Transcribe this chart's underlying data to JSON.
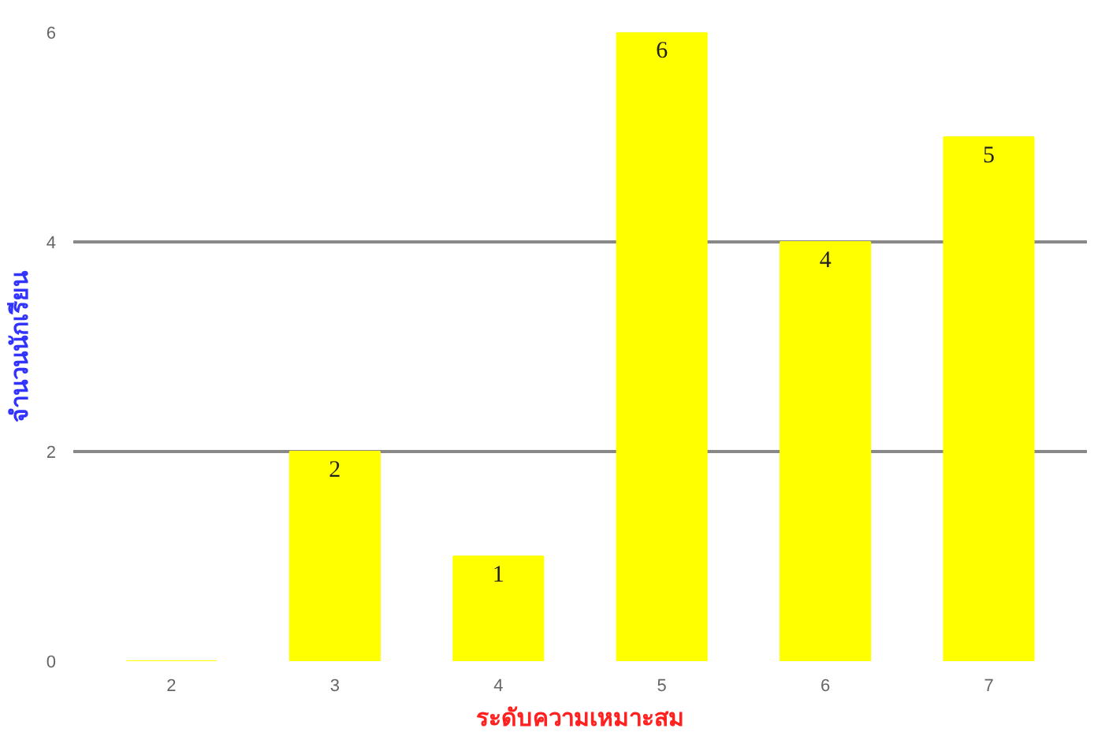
{
  "chart_data": {
    "type": "bar",
    "categories": [
      "2",
      "3",
      "4",
      "5",
      "6",
      "7"
    ],
    "values": [
      0,
      2,
      1,
      6,
      4,
      5
    ],
    "color": "#ffff00",
    "ylim": [
      0,
      6
    ],
    "yticks": [
      0,
      2,
      4,
      6
    ],
    "grid": "y",
    "value_labels": [
      null,
      "2",
      "1",
      "6",
      "4",
      "5"
    ],
    "xlabel": "ระดับความเหมาะสม",
    "ylabel": "จำนวนนักเรียน"
  }
}
